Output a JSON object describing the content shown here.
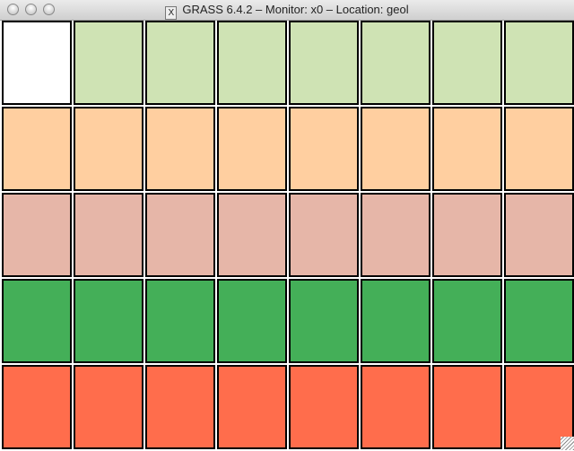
{
  "window": {
    "title": "GRASS 6.4.2 – Monitor: x0 – Location: geol",
    "icon": "x11-icon"
  },
  "grid": {
    "rows": [
      {
        "colors": [
          "#ffffff",
          "#cfe3b4",
          "#cfe3b4",
          "#cfe3b4",
          "#cfe3b4",
          "#cfe3b4",
          "#cfe3b4",
          "#cfe3b4"
        ]
      },
      {
        "colors": [
          "#ffcfa0",
          "#ffcfa0",
          "#ffcfa0",
          "#ffcfa0",
          "#ffcfa0",
          "#ffcfa0",
          "#ffcfa0",
          "#ffcfa0"
        ]
      },
      {
        "colors": [
          "#e6b6a8",
          "#e6b6a8",
          "#e6b6a8",
          "#e6b6a8",
          "#e6b6a8",
          "#e6b6a8",
          "#e6b6a8",
          "#e6b6a8"
        ]
      },
      {
        "colors": [
          "#44af58",
          "#44af58",
          "#44af58",
          "#44af58",
          "#44af58",
          "#44af58",
          "#44af58",
          "#44af58"
        ]
      },
      {
        "colors": [
          "#ff6d4c",
          "#ff6d4c",
          "#ff6d4c",
          "#ff6d4c",
          "#ff6d4c",
          "#ff6d4c",
          "#ff6d4c",
          "#ff6d4c"
        ]
      }
    ]
  }
}
